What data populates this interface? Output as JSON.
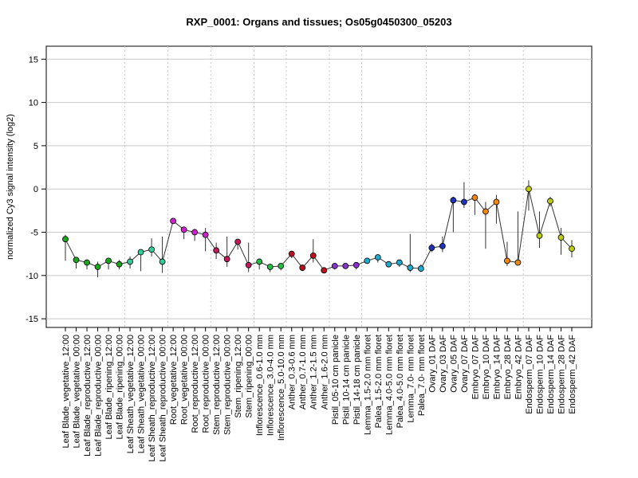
{
  "chart_data": {
    "type": "line",
    "title": "RXP_0001: Organs and tissues; Os05g0450300_05203",
    "xlabel": "",
    "ylabel": "normalized Cy3 signal intensity (log2)",
    "ylim": [
      -16,
      16.5
    ],
    "yticks": [
      -15,
      -10,
      -5,
      0,
      5,
      10,
      15
    ],
    "grid": {
      "horizontal": true,
      "vertical_dotted": true
    },
    "categories": [
      "Leaf Blade_vegetative_12:00",
      "Leaf Blade_vegetative_00:00",
      "Leaf Blade_reproductive_12:00",
      "Leaf Blade_reproductive_00:00",
      "Leaf Blade_ripening_12:00",
      "Leaf Blade_ripening_00:00",
      "Leaf Sheath_vegetative_12:00",
      "Leaf Sheath_vegetative_00:00",
      "Leaf Sheath_reproductive_12:00",
      "Leaf Sheath_reproductive_00:00",
      "Root_vegetative_12:00",
      "Root_vegetative_00:00",
      "Root_reproductive_12:00",
      "Root_reproductive_00:00",
      "Stem_reproductive_12:00",
      "Stem_reproductive_00:00",
      "Stem_ripening_12:00",
      "Stem_ripening_00:00",
      "Inflorescence_0.6-1.0 mm",
      "Inflorescence_3.0-4.0 mm",
      "Inflorescence_5.0-10.0 mm",
      "Anther_0.3-0.6 mm",
      "Anther_0.7-1.0 mm",
      "Anther_1.2-1.5 mm",
      "Anther_1.6-2.0 mm",
      "Pistil_05-10 cm panicle",
      "Pistil_10-14 cm panicle",
      "Pistil_14-18 cm panicle",
      "Lemma_1.5-2.0 mm floret",
      "Palea_1.5-2.0 mm floret",
      "Lemma_4.0-5.0 mm floret",
      "Palea_4.0-5.0 mm floret",
      "Lemma_7.0- mm floret",
      "Palea_7.0- mm floret",
      "Ovary_01 DAF",
      "Ovary_03 DAF",
      "Ovary_05 DAF",
      "Ovary_07 DAF",
      "Embryo_07 DAF",
      "Embryo_10 DAF",
      "Embryo_14 DAF",
      "Embryo_28 DAF",
      "Embryo_42 DAF",
      "Endosperm_07 DAF",
      "Endosperm_10 DAF",
      "Endosperm_14 DAF",
      "Endosperm_28 DAF",
      "Endosperm_42 DAF"
    ],
    "values": [
      -5.8,
      -8.2,
      -8.5,
      -9.0,
      -8.3,
      -8.7,
      -8.4,
      -7.3,
      -7.0,
      -8.4,
      -3.7,
      -4.7,
      -5.0,
      -5.3,
      -7.1,
      -8.1,
      -6.1,
      -8.8,
      -8.4,
      -9.0,
      -8.9,
      -7.5,
      -9.1,
      -7.7,
      -9.4,
      -8.9,
      -8.9,
      -8.8,
      -8.3,
      -7.9,
      -8.7,
      -8.5,
      -9.1,
      -9.2,
      -6.8,
      -6.6,
      -1.3,
      -1.5,
      -1.0,
      -2.6,
      -1.5,
      -8.3,
      -8.5,
      0.0,
      -5.4,
      -1.4,
      -5.6,
      -6.9
    ],
    "error_low": [
      -8.3,
      -9.2,
      -9.3,
      -10.2,
      -9.3,
      -9.3,
      -9.2,
      -9.5,
      -7.8,
      -9.7,
      -4.0,
      -5.8,
      -6.0,
      -7.2,
      -8.1,
      -9.0,
      -7.0,
      -9.6,
      -9.3,
      -9.6,
      -9.4,
      -8.0,
      -9.5,
      -8.5,
      -9.7,
      -9.3,
      -9.2,
      -9.3,
      -8.6,
      -8.5,
      -9.0,
      -9.0,
      -9.6,
      -9.6,
      -7.3,
      -7.3,
      -5.0,
      -2.2,
      -3.0,
      -6.9,
      -4.0,
      -8.9,
      -8.8,
      -2.5,
      -6.8,
      -2.0,
      -7.6,
      -7.9
    ],
    "error_high": [
      -5.3,
      -8.0,
      -8.2,
      -8.4,
      -8.0,
      -8.2,
      -7.8,
      -7.0,
      -5.7,
      -5.5,
      -3.5,
      -4.4,
      -4.6,
      -4.5,
      -6.2,
      -5.5,
      -5.9,
      -6.2,
      -8.1,
      -8.7,
      -8.6,
      -7.2,
      -8.8,
      -5.8,
      -9.1,
      -8.6,
      -8.6,
      -8.5,
      -8.0,
      -7.6,
      -8.4,
      -8.2,
      -5.2,
      -8.7,
      -6.3,
      -5.5,
      -0.9,
      0.8,
      -0.6,
      -1.5,
      -0.7,
      -6.1,
      -2.6,
      1.0,
      -2.6,
      -0.9,
      -4.5,
      -5.9
    ],
    "point_colors": [
      "#1ca61c",
      "#1ca61c",
      "#1ca61c",
      "#1ca61c",
      "#1ca61c",
      "#1ca61c",
      "#33cc99",
      "#33cc99",
      "#33cc99",
      "#33cc99",
      "#cc22cc",
      "#cc22cc",
      "#cc22cc",
      "#cc22cc",
      "#c01a5a",
      "#c01a5a",
      "#c01a5a",
      "#c01a5a",
      "#22bb44",
      "#22bb44",
      "#22bb44",
      "#bb1122",
      "#bb1122",
      "#bb1122",
      "#bb1122",
      "#8833cc",
      "#8833cc",
      "#8833cc",
      "#22aacc",
      "#22aacc",
      "#22aacc",
      "#22aacc",
      "#22aacc",
      "#22aacc",
      "#2233bb",
      "#2233bb",
      "#2233bb",
      "#2233bb",
      "#ee8811",
      "#ee8811",
      "#ee8811",
      "#ee8811",
      "#ee8811",
      "#bbcc11",
      "#bbcc11",
      "#bbcc11",
      "#bbcc11",
      "#bbcc11"
    ],
    "group_separators_after": [
      5,
      9,
      13,
      17,
      20,
      24,
      27,
      33,
      37,
      42
    ]
  }
}
